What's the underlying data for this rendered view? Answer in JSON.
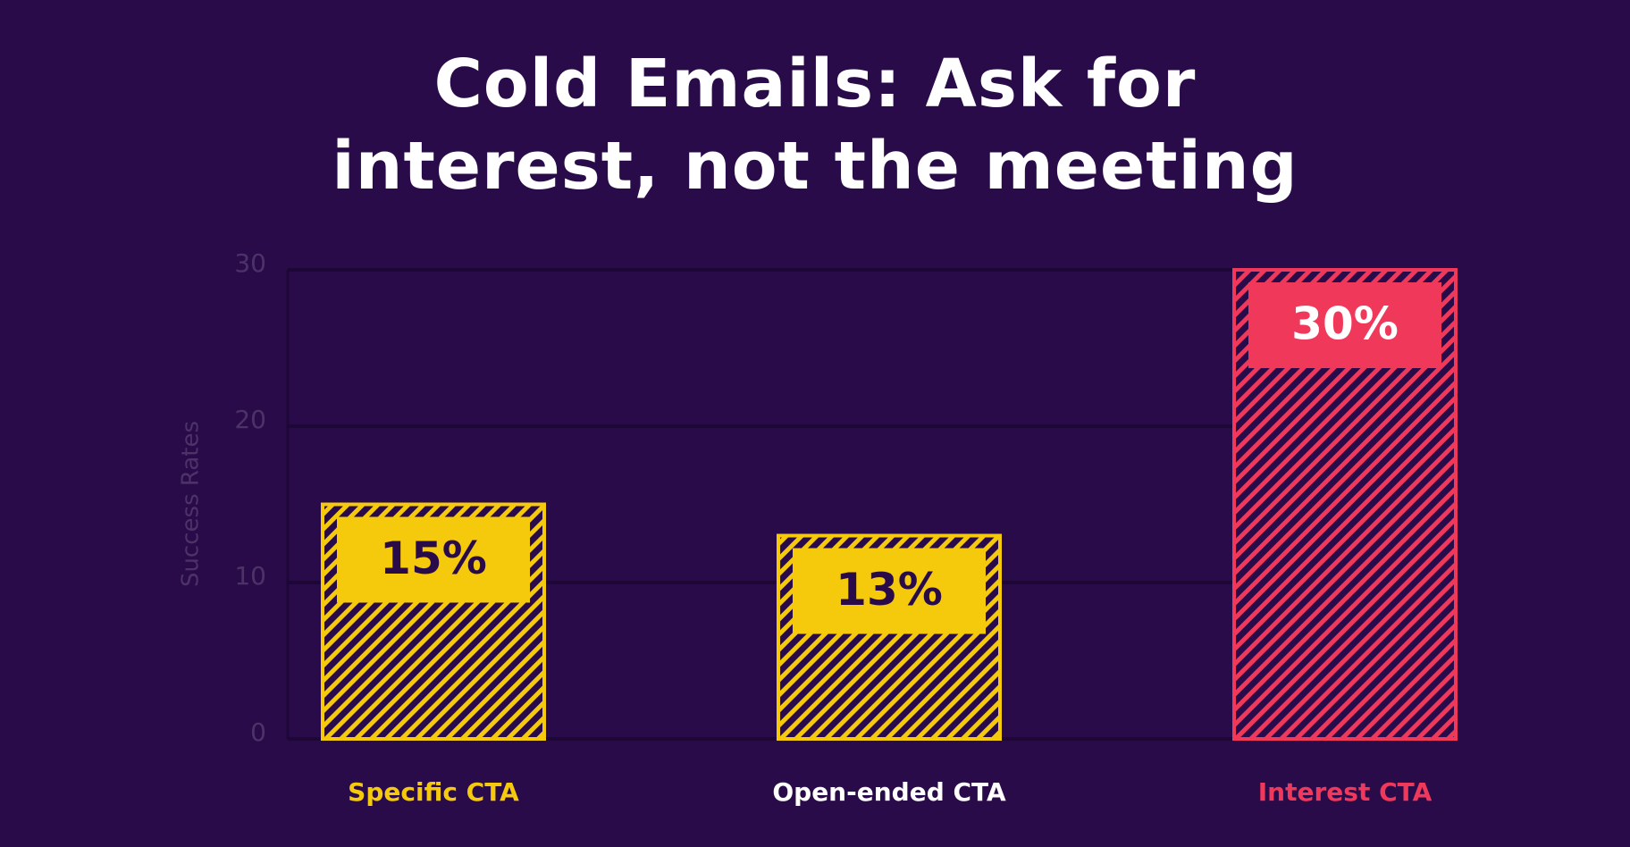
{
  "chart_data": {
    "type": "bar",
    "title": "Cold Emails: Ask for interest, not the meeting",
    "y_label": "Success Rates",
    "categories": [
      "Specific CTA",
      "Open-ended CTA",
      "Interest CTA"
    ],
    "values": [
      15,
      13,
      30
    ],
    "value_labels": [
      "15%",
      "13%",
      "30%"
    ],
    "colors": [
      "#f5c90c",
      "#f5c90c",
      "#f0395a"
    ],
    "label_colors": [
      "#f5c90c",
      "#ffffff",
      "#f0395a"
    ],
    "value_label_colors": [
      "#2a0b4a",
      "#2a0b4a",
      "#ffffff"
    ],
    "ylim": [
      0,
      30
    ],
    "yticks": [
      0,
      10,
      20,
      30
    ],
    "grid": true,
    "hatched": true
  }
}
